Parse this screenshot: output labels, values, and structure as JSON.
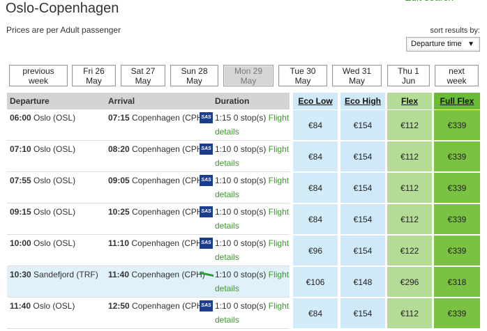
{
  "header": {
    "title": "Oslo-Copenhagen",
    "edit_link": "Edit search",
    "subtitle": "Prices are per Adult passenger",
    "sort_label": "sort results by:",
    "sort_value": "Departure time",
    "sort_arrow": "▼"
  },
  "dates": [
    [
      "previous",
      "week"
    ],
    [
      "Fri 26",
      "May"
    ],
    [
      "Sat 27",
      "May"
    ],
    [
      "Sun 28",
      "May"
    ],
    [
      "Mon 29",
      "May"
    ],
    [
      "Tue 30",
      "May"
    ],
    [
      "Wed 31",
      "May"
    ],
    [
      "Thu 1",
      "Jun"
    ],
    [
      "next",
      "week"
    ]
  ],
  "selected_date": 4,
  "table": {
    "columns": [
      "Departure",
      "Arrival",
      "Duration"
    ],
    "fares": [
      "Eco Low",
      "Eco High",
      "Flex",
      "Full Flex"
    ],
    "rows": [
      {
        "dep_time": "06:00",
        "dep": "Oslo (OSL)",
        "arr_time": "07:15",
        "arr": "Copenhagen (CPH)",
        "logo": "SAS",
        "duration": "1:15",
        "stops": "0 stop(s)",
        "link": "Flight details",
        "prices": [
          "€84",
          "€154",
          "€112",
          "€339"
        ]
      },
      {
        "dep_time": "07:10",
        "dep": "Oslo (OSL)",
        "arr_time": "08:20",
        "arr": "Copenhagen (CPH)",
        "logo": "SAS",
        "duration": "1:10",
        "stops": "0 stop(s)",
        "link": "Flight details",
        "prices": [
          "€84",
          "€154",
          "€112",
          "€339"
        ]
      },
      {
        "dep_time": "07:55",
        "dep": "Oslo (OSL)",
        "arr_time": "09:05",
        "arr": "Copenhagen (CPH)",
        "logo": "SAS",
        "duration": "1:10",
        "stops": "0 stop(s)",
        "link": "Flight details",
        "prices": [
          "€84",
          "€154",
          "€112",
          "€339"
        ]
      },
      {
        "dep_time": "09:15",
        "dep": "Oslo (OSL)",
        "arr_time": "10:25",
        "arr": "Copenhagen (CPH)",
        "logo": "SAS",
        "duration": "1:10",
        "stops": "0 stop(s)",
        "link": "Flight details",
        "prices": [
          "€84",
          "€154",
          "€112",
          "€339"
        ]
      },
      {
        "dep_time": "10:00",
        "dep": "Oslo (OSL)",
        "arr_time": "11:10",
        "arr": "Copenhagen (CPH)",
        "logo": "SAS",
        "duration": "1:10",
        "stops": "0 stop(s)",
        "link": "Flight details",
        "prices": [
          "€96",
          "€154",
          "€122",
          "€339"
        ]
      },
      {
        "dep_time": "10:30",
        "dep": "Sandefjord (TRF)",
        "arr_time": "11:40",
        "arr": "Copenhagen (CPH)",
        "duration": "1:10",
        "stops": "0 stop(s)",
        "link": "Flight details",
        "prices": [
          "€106",
          "€148",
          "€296",
          "€318"
        ],
        "highlight": true
      },
      {
        "dep_time": "11:40",
        "dep": "Oslo (OSL)",
        "arr_time": "12:50",
        "arr": "Copenhagen (CPH)",
        "logo": "SAS",
        "duration": "1:10",
        "stops": "0 stop(s)",
        "link": "Flight details",
        "prices": [
          "€84",
          "€154",
          "€112",
          "€339"
        ]
      }
    ]
  }
}
